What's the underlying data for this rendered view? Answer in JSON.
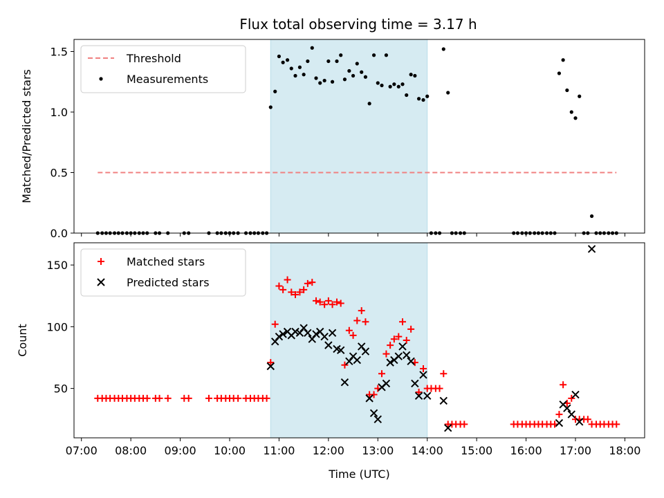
{
  "title": "Flux total observing time = 3.17 h",
  "chart_data": [
    {
      "type": "scatter",
      "ylabel": "Matched/Predicted stars",
      "xlabel": "",
      "ylim": [
        0,
        1.6
      ],
      "yticks": [
        "0.0",
        "0.5",
        "1.0",
        "1.5"
      ],
      "ytick_values": [
        0,
        0.5,
        1.0,
        1.5
      ],
      "x_range_hours": [
        6.85,
        18.4
      ],
      "shaded_span_hours": [
        10.83,
        14.0
      ],
      "legend": {
        "placement": "upper-left",
        "entries": [
          "Threshold",
          "Measurements"
        ]
      },
      "threshold": {
        "name": "Threshold",
        "value": 0.5,
        "x_start": 7.33,
        "x_end": 17.83,
        "color": "#f08080"
      },
      "measurements": {
        "name": "Measurements",
        "color": "#000000",
        "x": [
          7.33,
          7.42,
          7.5,
          7.58,
          7.67,
          7.75,
          7.83,
          7.92,
          8.0,
          8.08,
          8.17,
          8.25,
          8.33,
          8.5,
          8.58,
          8.75,
          9.08,
          9.17,
          9.58,
          9.75,
          9.83,
          9.92,
          10.0,
          10.08,
          10.17,
          10.33,
          10.42,
          10.5,
          10.58,
          10.67,
          10.75,
          10.83,
          10.92,
          11.0,
          11.08,
          11.17,
          11.25,
          11.33,
          11.42,
          11.5,
          11.58,
          11.67,
          11.75,
          11.83,
          11.92,
          12.0,
          12.08,
          12.17,
          12.25,
          12.33,
          12.42,
          12.5,
          12.58,
          12.67,
          12.75,
          12.83,
          12.92,
          13.0,
          13.08,
          13.17,
          13.25,
          13.33,
          13.42,
          13.5,
          13.58,
          13.67,
          13.75,
          13.83,
          13.92,
          14.0,
          14.08,
          14.17,
          14.25,
          14.33,
          14.42,
          14.5,
          14.58,
          14.67,
          14.75,
          15.75,
          15.83,
          15.92,
          16.0,
          16.08,
          16.17,
          16.25,
          16.33,
          16.42,
          16.5,
          16.58,
          16.67,
          16.75,
          16.83,
          16.92,
          17.0,
          17.08,
          17.17,
          17.25,
          17.33,
          17.42,
          17.5,
          17.58,
          17.67,
          17.75,
          17.83
        ],
        "y": [
          0,
          0,
          0,
          0,
          0,
          0,
          0,
          0,
          0,
          0,
          0,
          0,
          0,
          0,
          0,
          0,
          0,
          0,
          0,
          0,
          0,
          0,
          0,
          0,
          0,
          0,
          0,
          0,
          0,
          0,
          0,
          1.04,
          1.17,
          1.46,
          1.41,
          1.43,
          1.36,
          1.3,
          1.37,
          1.31,
          1.42,
          1.53,
          1.28,
          1.24,
          1.26,
          1.42,
          1.25,
          1.42,
          1.47,
          1.27,
          1.34,
          1.3,
          1.4,
          1.33,
          1.29,
          1.07,
          1.47,
          1.24,
          1.22,
          1.47,
          1.21,
          1.23,
          1.21,
          1.23,
          1.14,
          1.31,
          1.3,
          1.11,
          1.1,
          1.13,
          0,
          0,
          0,
          1.52,
          1.16,
          0,
          0,
          0,
          0,
          0,
          0,
          0,
          0,
          0,
          0,
          0,
          0,
          0,
          0,
          0,
          1.32,
          1.43,
          1.18,
          1.0,
          0.95,
          1.13,
          0,
          0,
          0.14,
          0,
          0,
          0,
          0,
          0,
          0
        ]
      }
    },
    {
      "type": "scatter",
      "ylabel": "Count",
      "xlabel": "Time (UTC)",
      "ylim": [
        10,
        168
      ],
      "yticks": [
        "50",
        "100",
        "150"
      ],
      "ytick_values": [
        50,
        100,
        150
      ],
      "x_range_hours": [
        6.85,
        18.4
      ],
      "xticks": [
        "07:00",
        "08:00",
        "09:00",
        "10:00",
        "11:00",
        "12:00",
        "13:00",
        "14:00",
        "15:00",
        "16:00",
        "17:00",
        "18:00"
      ],
      "xtick_values": [
        7,
        8,
        9,
        10,
        11,
        12,
        13,
        14,
        15,
        16,
        17,
        18
      ],
      "shaded_span_hours": [
        10.83,
        14.0
      ],
      "legend": {
        "placement": "upper-left",
        "entries": [
          "Matched stars",
          "Predicted stars"
        ]
      },
      "series": [
        {
          "name": "Matched stars",
          "marker": "plus",
          "color": "#ff0000",
          "x": [
            7.33,
            7.42,
            7.5,
            7.58,
            7.67,
            7.75,
            7.83,
            7.92,
            8.0,
            8.08,
            8.17,
            8.25,
            8.33,
            8.5,
            8.58,
            8.75,
            9.08,
            9.17,
            9.58,
            9.75,
            9.83,
            9.92,
            10.0,
            10.08,
            10.17,
            10.33,
            10.42,
            10.5,
            10.58,
            10.67,
            10.75,
            10.83,
            10.92,
            11.0,
            11.08,
            11.17,
            11.25,
            11.33,
            11.42,
            11.5,
            11.58,
            11.67,
            11.75,
            11.83,
            11.92,
            12.0,
            12.08,
            12.17,
            12.25,
            12.33,
            12.42,
            12.5,
            12.58,
            12.67,
            12.75,
            12.83,
            12.92,
            13.0,
            13.08,
            13.17,
            13.25,
            13.33,
            13.42,
            13.5,
            13.58,
            13.67,
            13.75,
            13.83,
            13.92,
            14.0,
            14.08,
            14.17,
            14.25,
            14.33,
            14.42,
            14.5,
            14.58,
            14.67,
            14.75,
            15.75,
            15.83,
            15.92,
            16.0,
            16.08,
            16.17,
            16.25,
            16.33,
            16.42,
            16.5,
            16.58,
            16.67,
            16.75,
            16.83,
            16.92,
            17.0,
            17.08,
            17.17,
            17.25,
            17.33,
            17.42,
            17.5,
            17.58,
            17.67,
            17.75,
            17.83
          ],
          "y": [
            42,
            42,
            42,
            42,
            42,
            42,
            42,
            42,
            42,
            42,
            42,
            42,
            42,
            42,
            42,
            42,
            42,
            42,
            42,
            42,
            42,
            42,
            42,
            42,
            42,
            42,
            42,
            42,
            42,
            42,
            42,
            71,
            102,
            133,
            130,
            138,
            128,
            126,
            128,
            130,
            135,
            136,
            121,
            120,
            118,
            121,
            118,
            120,
            119,
            69,
            97,
            93,
            105,
            113,
            104,
            45,
            45,
            50,
            62,
            78,
            85,
            90,
            92,
            104,
            89,
            98,
            71,
            47,
            66,
            50,
            50,
            50,
            50,
            62,
            21,
            21,
            21,
            21,
            21,
            21,
            21,
            21,
            21,
            21,
            21,
            21,
            21,
            21,
            21,
            21,
            29,
            53,
            38,
            42,
            25,
            25,
            25,
            25,
            21,
            21,
            21,
            21,
            21,
            21,
            21
          ]
        },
        {
          "name": "Predicted stars",
          "marker": "x",
          "color": "#000000",
          "x": [
            10.83,
            10.92,
            11.0,
            11.08,
            11.17,
            11.25,
            11.33,
            11.42,
            11.5,
            11.58,
            11.67,
            11.75,
            11.83,
            11.92,
            12.0,
            12.08,
            12.17,
            12.25,
            12.33,
            12.42,
            12.5,
            12.58,
            12.67,
            12.75,
            12.83,
            12.92,
            13.0,
            13.08,
            13.17,
            13.25,
            13.33,
            13.42,
            13.5,
            13.58,
            13.67,
            13.75,
            13.83,
            13.92,
            14.0,
            14.33,
            14.42,
            16.67,
            16.75,
            16.83,
            16.92,
            17.0,
            17.08,
            17.33
          ],
          "y": [
            68,
            88,
            92,
            94,
            96,
            93,
            96,
            95,
            99,
            95,
            90,
            94,
            96,
            92,
            85,
            95,
            82,
            81,
            55,
            72,
            76,
            73,
            84,
            80,
            42,
            30,
            25,
            51,
            54,
            71,
            73,
            76,
            84,
            77,
            72,
            54,
            44,
            61,
            44,
            40,
            18,
            22,
            37,
            34,
            29,
            45,
            23,
            163
          ]
        }
      ]
    }
  ]
}
